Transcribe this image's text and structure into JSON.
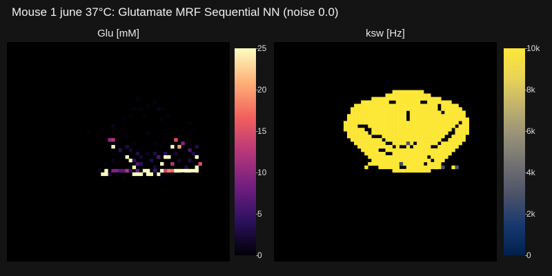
{
  "figure": {
    "title": "Mouse 1 june 37°C: Glutamate MRF Sequential NN (noise 0.0)"
  },
  "chart_data": [
    {
      "type": "heatmap",
      "title": "Glu [mM]",
      "colormap": "magma",
      "colormap_stops": [
        "#000004",
        "#2c115f",
        "#721f81",
        "#b73779",
        "#f1605d",
        "#feb078",
        "#fcfdbf"
      ],
      "range": [
        0,
        25
      ],
      "colorbar_ticks": [
        "0",
        "5",
        "10",
        "15",
        "20",
        "25"
      ],
      "colorbar_tick_values": [
        0,
        5,
        10,
        15,
        20,
        25
      ],
      "grid_size": [
        64,
        64
      ],
      "description_of_pattern": "sparse voxels mostly near 0, a band of high values at the lower edge of the brain",
      "pixels": [
        [
          43,
          19,
          1
        ],
        [
          44,
          19,
          0.5
        ],
        [
          37,
          16,
          0.5
        ],
        [
          36,
          19,
          0.5
        ],
        [
          42,
          17,
          0.5
        ],
        [
          40,
          18,
          0.5
        ],
        [
          38,
          19,
          0.5
        ],
        [
          30,
          24,
          1
        ],
        [
          33,
          22,
          0.5
        ],
        [
          35,
          21,
          0.5
        ],
        [
          39,
          21,
          0.5
        ],
        [
          44,
          22,
          0.5
        ],
        [
          46,
          21,
          0.5
        ],
        [
          52,
          23,
          0.5
        ],
        [
          23,
          26,
          0.5
        ],
        [
          27,
          25,
          0.5
        ],
        [
          31,
          25,
          0.5
        ],
        [
          34,
          27,
          0.5
        ],
        [
          40,
          26,
          0.5
        ],
        [
          45,
          27,
          0.5
        ],
        [
          53,
          25,
          0.5
        ],
        [
          29,
          28,
          10
        ],
        [
          30,
          28,
          12
        ],
        [
          48,
          28,
          15
        ],
        [
          50,
          29,
          9
        ],
        [
          31,
          29,
          0.5
        ],
        [
          36,
          29,
          0.5
        ],
        [
          42,
          29,
          0.5
        ],
        [
          30,
          30,
          25
        ],
        [
          32,
          31,
          4
        ],
        [
          34,
          30,
          3
        ],
        [
          35,
          31,
          2
        ],
        [
          47,
          30,
          25
        ],
        [
          49,
          30,
          20
        ],
        [
          52,
          31,
          6
        ],
        [
          54,
          30,
          3
        ],
        [
          33,
          32,
          0.5
        ],
        [
          37,
          32,
          3
        ],
        [
          40,
          32,
          1
        ],
        [
          42,
          32,
          3
        ],
        [
          45,
          32,
          4
        ],
        [
          48,
          32,
          2
        ],
        [
          53,
          32,
          3
        ],
        [
          34,
          33,
          25
        ],
        [
          35,
          34,
          25
        ],
        [
          36,
          34,
          4
        ],
        [
          38,
          33,
          2
        ],
        [
          43,
          33,
          6
        ],
        [
          45,
          33,
          25
        ],
        [
          46,
          33,
          25
        ],
        [
          54,
          33,
          25
        ],
        [
          30,
          34,
          1
        ],
        [
          32,
          34,
          0.5
        ],
        [
          37,
          35,
          6
        ],
        [
          41,
          34,
          3
        ],
        [
          44,
          34,
          0.5
        ],
        [
          49,
          34,
          2
        ],
        [
          52,
          34,
          3
        ],
        [
          53,
          34,
          0.5
        ],
        [
          28,
          35,
          0.5
        ],
        [
          29,
          36,
          0.5
        ],
        [
          36,
          36,
          25
        ],
        [
          38,
          35,
          4
        ],
        [
          40,
          35,
          0.5
        ],
        [
          42,
          36,
          2
        ],
        [
          44,
          35,
          25
        ],
        [
          45,
          36,
          0.5
        ],
        [
          47,
          35,
          12
        ],
        [
          51,
          36,
          3
        ],
        [
          55,
          35,
          15
        ],
        [
          54,
          36,
          25
        ],
        [
          26,
          37,
          1
        ],
        [
          27,
          38,
          25
        ],
        [
          28,
          37,
          25
        ],
        [
          29,
          38,
          3
        ],
        [
          30,
          37,
          9
        ],
        [
          31,
          37,
          9
        ],
        [
          32,
          37,
          7
        ],
        [
          33,
          37,
          7
        ],
        [
          34,
          37,
          12
        ],
        [
          35,
          37,
          4
        ],
        [
          37,
          37,
          8
        ],
        [
          38,
          38,
          25
        ],
        [
          39,
          37,
          25
        ],
        [
          40,
          37,
          25
        ],
        [
          41,
          38,
          25
        ],
        [
          42,
          37,
          5
        ],
        [
          43,
          38,
          25
        ],
        [
          44,
          37,
          25
        ],
        [
          45,
          37,
          14
        ],
        [
          46,
          37,
          18
        ],
        [
          47,
          37,
          17
        ],
        [
          48,
          37,
          25
        ],
        [
          49,
          37,
          25
        ],
        [
          50,
          37,
          25
        ],
        [
          51,
          37,
          25
        ],
        [
          52,
          37,
          25
        ],
        [
          53,
          37,
          25
        ],
        [
          54,
          37,
          25
        ],
        [
          28,
          38,
          25
        ],
        [
          31,
          38,
          0.5
        ],
        [
          36,
          38,
          25
        ],
        [
          37,
          38,
          25
        ],
        [
          40,
          38,
          25
        ],
        [
          42,
          38,
          0.5
        ],
        [
          47,
          38,
          1
        ],
        [
          50,
          38,
          0.5
        ],
        [
          33,
          39,
          0.5
        ],
        [
          44,
          39,
          0.5
        ],
        [
          53,
          38,
          0.5
        ]
      ]
    },
    {
      "type": "heatmap",
      "title": "ksw [Hz]",
      "colormap": "cividis",
      "colormap_stops": [
        "#00204d",
        "#17386e",
        "#4a5168",
        "#6f6f72",
        "#958f78",
        "#bfb06e",
        "#e9d357",
        "#fde737"
      ],
      "range": [
        0,
        10000
      ],
      "colorbar_ticks": [
        "0",
        "2k",
        "4k",
        "6k",
        "8k",
        "10k"
      ],
      "colorbar_tick_values": [
        0,
        2000,
        4000,
        6000,
        8000,
        10000
      ],
      "grid_size": [
        64,
        64
      ],
      "saturated_value": 10000,
      "mask_rows": [
        [
          14,
          34,
          42
        ],
        [
          15,
          32,
          44
        ],
        [
          16,
          28,
          47
        ],
        [
          17,
          25,
          50
        ],
        [
          18,
          23,
          52
        ],
        [
          19,
          22,
          53
        ],
        [
          20,
          22,
          54
        ],
        [
          21,
          21,
          54
        ],
        [
          22,
          21,
          55
        ],
        [
          23,
          20,
          55
        ],
        [
          24,
          20,
          55
        ],
        [
          25,
          20,
          55
        ],
        [
          26,
          21,
          55
        ],
        [
          27,
          21,
          54
        ],
        [
          28,
          22,
          54
        ],
        [
          29,
          23,
          53
        ],
        [
          30,
          24,
          52
        ],
        [
          31,
          25,
          51
        ],
        [
          32,
          26,
          50
        ],
        [
          33,
          27,
          49
        ],
        [
          34,
          28,
          48
        ],
        [
          35,
          28,
          47
        ],
        [
          36,
          30,
          46
        ],
        [
          37,
          34,
          44
        ]
      ],
      "holes": [
        [
          33,
          17
        ],
        [
          34,
          17
        ],
        [
          42,
          17
        ],
        [
          43,
          17
        ],
        [
          38,
          20
        ],
        [
          38,
          21
        ],
        [
          38,
          22
        ],
        [
          47,
          18
        ],
        [
          47,
          19
        ],
        [
          48,
          20
        ],
        [
          24,
          24
        ],
        [
          25,
          24
        ],
        [
          26,
          24
        ],
        [
          26,
          25
        ],
        [
          27,
          25
        ],
        [
          27,
          26
        ],
        [
          28,
          27
        ],
        [
          29,
          27
        ],
        [
          30,
          27
        ],
        [
          31,
          28
        ],
        [
          32,
          29
        ],
        [
          33,
          29
        ],
        [
          34,
          30
        ],
        [
          51,
          25
        ],
        [
          51,
          26
        ],
        [
          50,
          26
        ],
        [
          50,
          27
        ],
        [
          49,
          27
        ],
        [
          49,
          28
        ],
        [
          48,
          28
        ],
        [
          47,
          29
        ],
        [
          46,
          30
        ],
        [
          45,
          30
        ],
        [
          52,
          24
        ],
        [
          53,
          23
        ],
        [
          30,
          31
        ],
        [
          31,
          31
        ],
        [
          32,
          32
        ],
        [
          33,
          32
        ],
        [
          36,
          30
        ],
        [
          37,
          30
        ],
        [
          22,
          30
        ],
        [
          23,
          31
        ],
        [
          24,
          32
        ],
        [
          22,
          33
        ],
        [
          23,
          34
        ],
        [
          24,
          33
        ],
        [
          25,
          34
        ],
        [
          44,
          33
        ],
        [
          45,
          34
        ],
        [
          36,
          36
        ],
        [
          37,
          36
        ],
        [
          43,
          35
        ],
        [
          28,
          36
        ],
        [
          29,
          36
        ],
        [
          39,
          30
        ],
        [
          40,
          29
        ]
      ],
      "extra": [
        [
          27,
          35
        ],
        [
          26,
          36
        ],
        [
          46,
          36
        ],
        [
          47,
          36
        ],
        [
          51,
          36
        ],
        [
          40,
          33
        ],
        [
          36,
          33
        ]
      ],
      "midvalues": [
        [
          38,
          29,
          3000
        ],
        [
          48,
          36,
          3000
        ],
        [
          52,
          36,
          3000
        ],
        [
          36,
          35,
          2500
        ]
      ]
    }
  ]
}
